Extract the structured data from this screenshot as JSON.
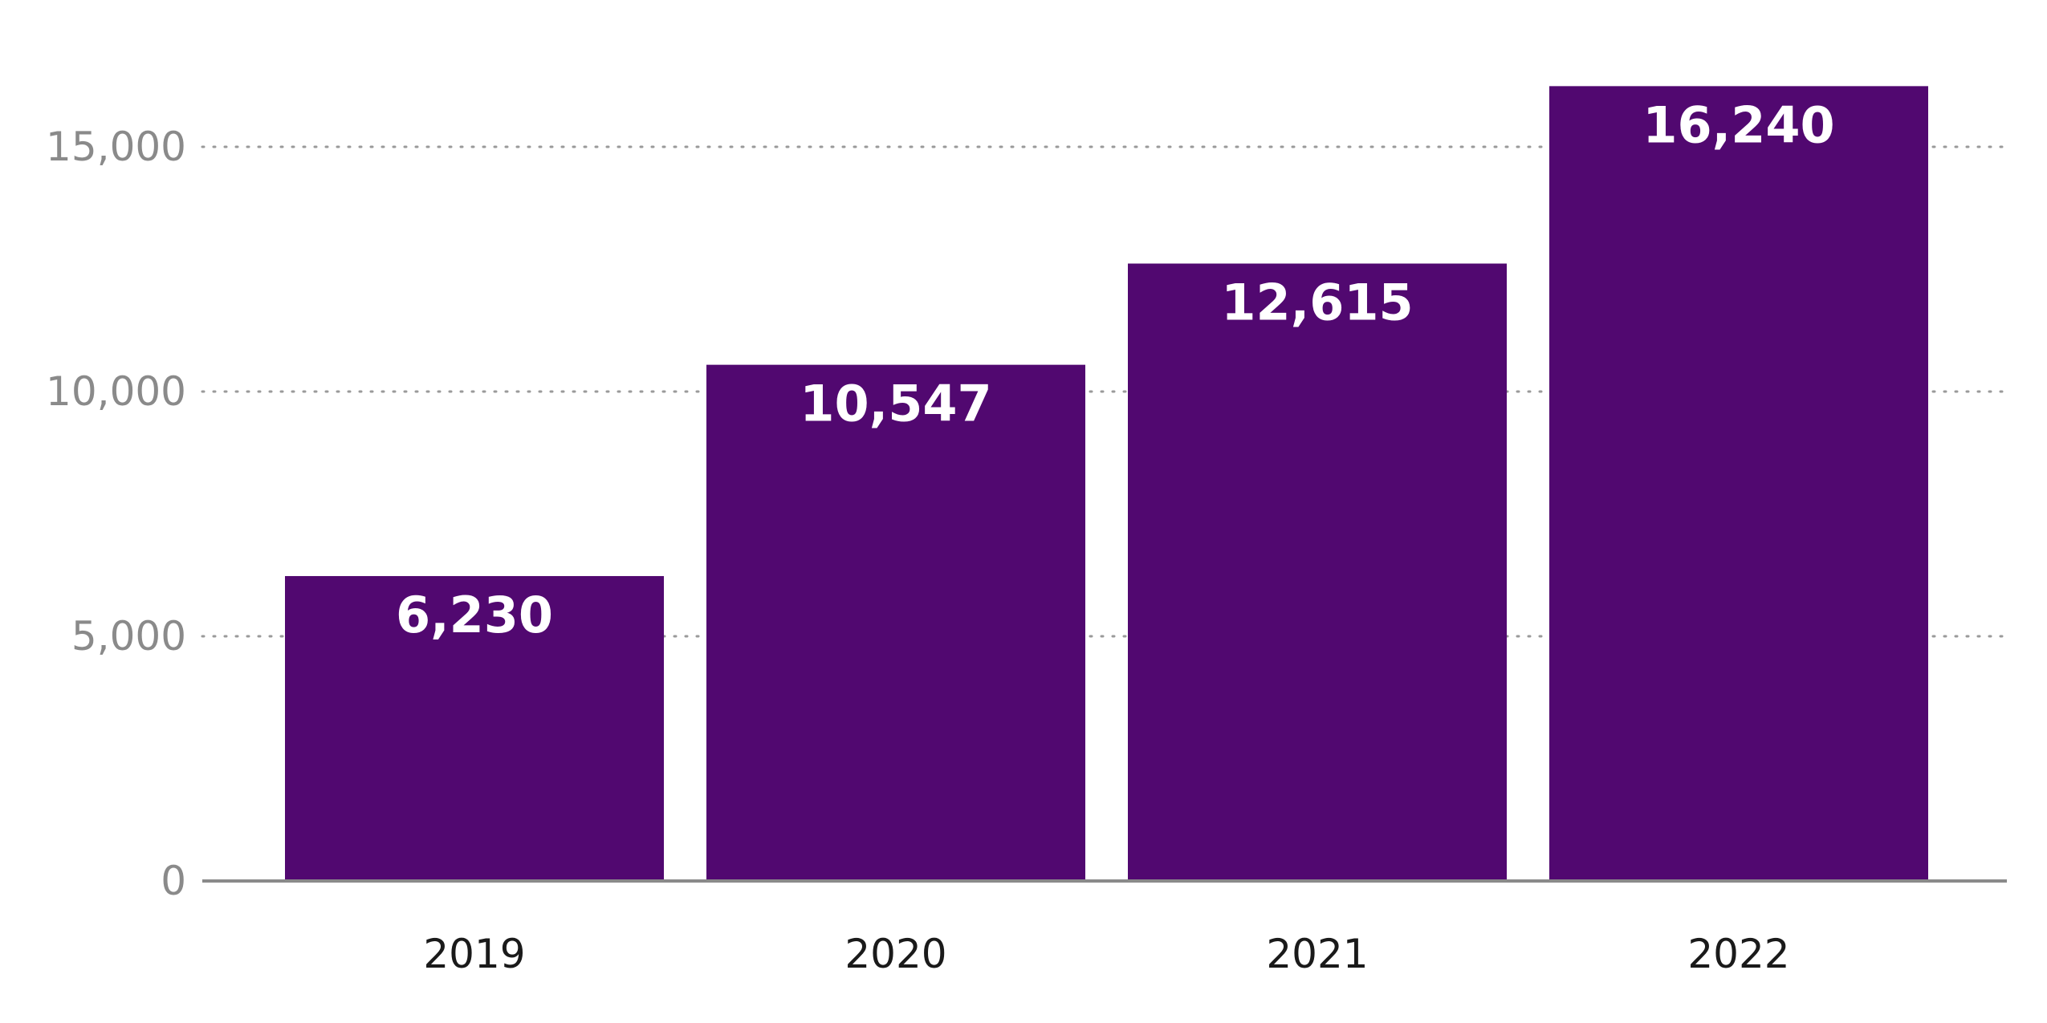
{
  "chart_data": {
    "type": "bar",
    "categories": [
      "2019",
      "2020",
      "2021",
      "2022"
    ],
    "values": [
      6230,
      10547,
      12615,
      16240
    ],
    "data_labels": [
      "6,230",
      "10,547",
      "12,615",
      "16,240"
    ],
    "title": "",
    "xlabel": "",
    "ylabel": "",
    "ylim": [
      0,
      17000
    ],
    "yticks": [
      0,
      5000,
      10000,
      15000
    ],
    "ytick_labels": [
      "0",
      "5,000",
      "10,000",
      "15,000"
    ],
    "grid": "horizontal dotted",
    "legend": "none",
    "colors": {
      "bar": "#510870",
      "grid": "#9a9a9a",
      "axis": "#8a8a8a",
      "tick_text": "#8a8a8a",
      "category_text": "#1a1a1a",
      "data_label_text": "#ffffff"
    }
  }
}
